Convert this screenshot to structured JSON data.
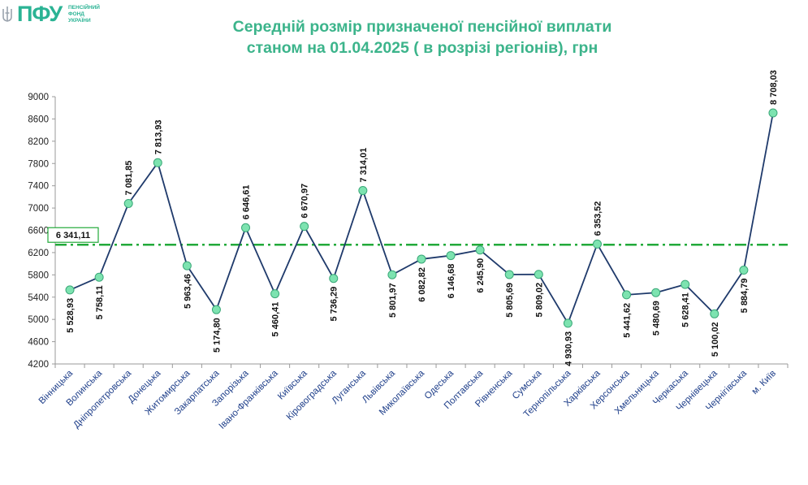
{
  "logo": {
    "text": "ПФУ",
    "sub1": "ПЕНСІЙНИЙ",
    "sub2": "ФОНД",
    "sub3": "УКРАЇНИ"
  },
  "colors": {
    "title": "#3cb48b",
    "line": "#1f3a6b",
    "marker": "#7de3b0",
    "average": "#22aa3a",
    "category": "#1f3f8a"
  },
  "chart_data": {
    "type": "line",
    "title_line1": "Середній розмір призначеної пенсійної виплати",
    "title_line2": "станом на 01.04.2025 ( в розрізі регіонів), грн",
    "categories": [
      "Вінницька",
      "Волинська",
      "Дніпропетровська",
      "Донецька",
      "Житомирська",
      "Закарпатська",
      "Запорізька",
      "Івано-Франківська",
      "Київська",
      "Кіровоградська",
      "Луганська",
      "Львівська",
      "Миколаївська",
      "Одеська",
      "Полтавська",
      "Рівненська",
      "Сумська",
      "Тернопільська",
      "Харківська",
      "Херсонська",
      "Хмельницька",
      "Черкаська",
      "Чернівецька",
      "Чернігівська",
      "м. Київ"
    ],
    "values": [
      5528.93,
      5758.11,
      7081.85,
      7813.93,
      5963.46,
      5174.8,
      6646.61,
      5460.41,
      6670.97,
      5736.29,
      7314.01,
      5801.97,
      6082.82,
      6146.68,
      6245.9,
      5805.69,
      5809.02,
      4930.93,
      6353.52,
      5441.62,
      5480.69,
      5628.41,
      5100.02,
      5884.79,
      8708.03
    ],
    "value_labels": [
      "5 528,93",
      "5 758,11",
      "7 081,85",
      "7 813,93",
      "5 963,46",
      "5 174,80",
      "6 646,61",
      "5 460,41",
      "6 670,97",
      "5 736,29",
      "7 314,01",
      "5 801,97",
      "6 082,82",
      "6 146,68",
      "6 245,90",
      "5 805,69",
      "5 809,02",
      "4 930,93",
      "6 353,52",
      "5 441,62",
      "5 480,69",
      "5 628,41",
      "5 100,02",
      "5 884,79",
      "8 708,03"
    ],
    "label_position": [
      "below",
      "below",
      "above",
      "above",
      "below",
      "below",
      "above",
      "below",
      "above",
      "below",
      "above",
      "below",
      "below",
      "below",
      "below",
      "below",
      "below",
      "below",
      "above",
      "below",
      "below",
      "below",
      "below",
      "below",
      "above"
    ],
    "average": 6341.11,
    "average_label": "6 341,11",
    "ylim": [
      4200,
      9000
    ],
    "yticks": [
      4200,
      4600,
      5000,
      5400,
      5800,
      6200,
      6600,
      7000,
      7400,
      7800,
      8200,
      8600,
      9000
    ],
    "xlabel": "",
    "ylabel": "",
    "grid": false,
    "legend": "none"
  }
}
